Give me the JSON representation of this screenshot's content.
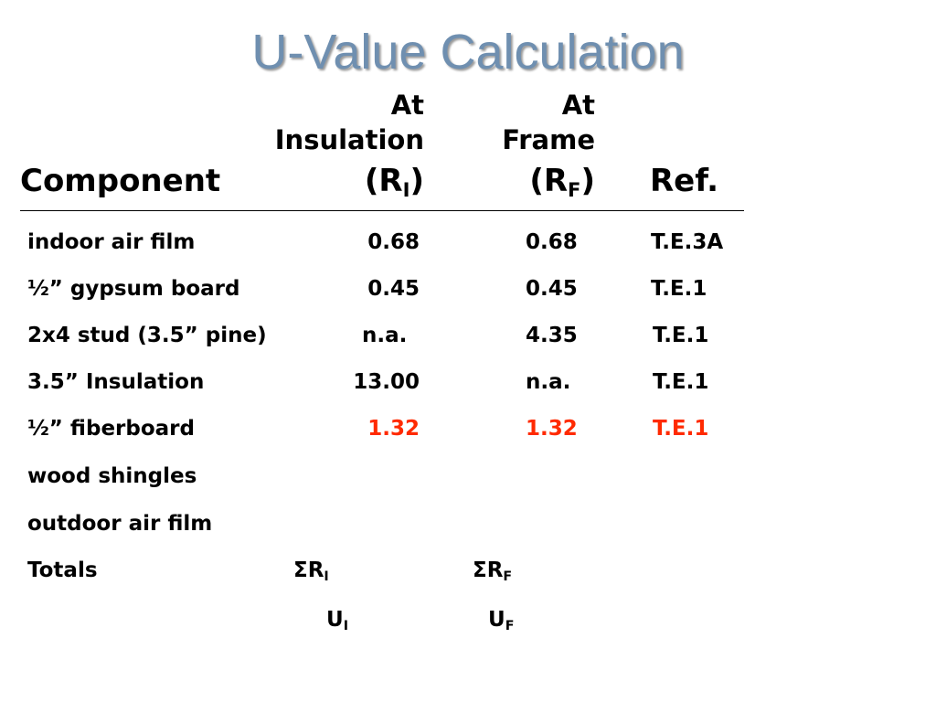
{
  "title": "U-Value Calculation",
  "header": {
    "component": "Component",
    "insulation_line1": "At",
    "insulation_line2": "Insulation",
    "insulation_symbol": "(R",
    "insulation_sub": "I",
    "insulation_close": ")",
    "frame_line1": "At",
    "frame_line2": "Frame",
    "frame_symbol": "(R",
    "frame_sub": "F",
    "frame_close": ")",
    "ref": "Ref."
  },
  "rows": [
    {
      "component": "indoor air film",
      "r_i": "0.68",
      "r_f": "0.68",
      "ref": "T.E.3A"
    },
    {
      "component": "½” gypsum board",
      "r_i": "0.45",
      "r_f": "0.45",
      "ref": "T.E.1"
    },
    {
      "component": "2x4 stud (3.5” pine)",
      "r_i": "n.a.",
      "r_f": "4.35",
      "ref": "T.E.1"
    },
    {
      "component": "3.5” Insulation",
      "r_i": "13.00",
      "r_f": "n.a.",
      "ref": "T.E.1"
    },
    {
      "component": "½” fiberboard",
      "r_i": "1.32",
      "r_f": "1.32",
      "ref": "T.E.1"
    },
    {
      "component": "wood shingles",
      "r_i": "",
      "r_f": "",
      "ref": ""
    },
    {
      "component": "outdoor air film",
      "r_i": "",
      "r_f": "",
      "ref": ""
    }
  ],
  "totals": {
    "label": "Totals",
    "sum_i": "ΣR",
    "sum_i_sub": "I",
    "sum_f": "ΣR",
    "sum_f_sub": "F",
    "u_i": "U",
    "u_i_sub": "I",
    "u_f": "U",
    "u_f_sub": "F"
  },
  "highlight_color": "#ff2a00",
  "title_color": "#6f8fb0"
}
